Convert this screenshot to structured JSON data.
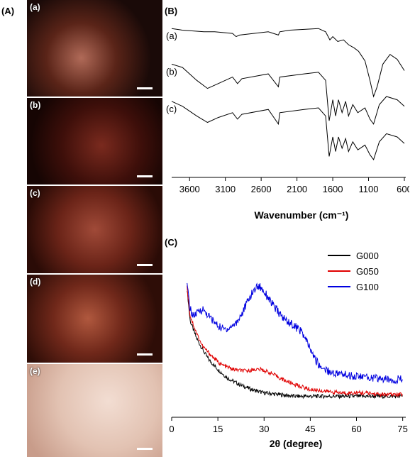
{
  "panels": {
    "A": "(A)",
    "B": "(B)",
    "C": "(C)"
  },
  "photos": [
    {
      "label": "(a)",
      "bg": "radial-gradient(circle at 40% 60%, #b06a58 0%, #5a2418 35%, #1a0a08 70%)"
    },
    {
      "label": "(b)",
      "bg": "radial-gradient(circle at 55% 55%, #7a2a1e 0%, #3e0f0a 45%, #160503 80%)"
    },
    {
      "label": "(c)",
      "bg": "radial-gradient(circle at 50% 50%, #a04a38 0%, #6b2418 45%, #2a0b06 85%)"
    },
    {
      "label": "(d)",
      "bg": "radial-gradient(circle at 45% 50%, #b0583e 0%, #70281a 40%, #2e0d07 80%)"
    },
    {
      "label": "(e)",
      "bg": "radial-gradient(circle at 60% 40%, #f2ddd2 0%, #e2c2b2 50%, #c89c8a 90%)"
    }
  ],
  "chart_data": [
    {
      "type": "line",
      "panel": "(B)",
      "xlabel": "Wavenumber (cm⁻¹)",
      "x_ticks": [
        3600,
        3100,
        2600,
        2100,
        1600,
        1100,
        600
      ],
      "xlim": [
        3850,
        580
      ],
      "reversed_x": true,
      "series": [
        {
          "name": "(a)",
          "points": [
            [
              3850,
              0.92
            ],
            [
              3700,
              0.91
            ],
            [
              3400,
              0.9
            ],
            [
              3250,
              0.9
            ],
            [
              3000,
              0.89
            ],
            [
              2950,
              0.87
            ],
            [
              2900,
              0.88
            ],
            [
              2500,
              0.9
            ],
            [
              2360,
              0.88
            ],
            [
              2340,
              0.9
            ],
            [
              2200,
              0.91
            ],
            [
              1800,
              0.92
            ],
            [
              1700,
              0.9
            ],
            [
              1640,
              0.85
            ],
            [
              1600,
              0.87
            ],
            [
              1530,
              0.84
            ],
            [
              1450,
              0.85
            ],
            [
              1380,
              0.82
            ],
            [
              1300,
              0.8
            ],
            [
              1240,
              0.78
            ],
            [
              1150,
              0.72
            ],
            [
              1080,
              0.6
            ],
            [
              1030,
              0.5
            ],
            [
              980,
              0.56
            ],
            [
              900,
              0.7
            ],
            [
              800,
              0.76
            ],
            [
              700,
              0.73
            ],
            [
              600,
              0.66
            ]
          ]
        },
        {
          "name": "(b)",
          "points": [
            [
              3850,
              0.7
            ],
            [
              3700,
              0.68
            ],
            [
              3500,
              0.6
            ],
            [
              3350,
              0.55
            ],
            [
              3200,
              0.58
            ],
            [
              3000,
              0.62
            ],
            [
              2930,
              0.58
            ],
            [
              2870,
              0.61
            ],
            [
              2500,
              0.64
            ],
            [
              2360,
              0.56
            ],
            [
              2340,
              0.62
            ],
            [
              2000,
              0.64
            ],
            [
              1800,
              0.65
            ],
            [
              1700,
              0.6
            ],
            [
              1650,
              0.35
            ],
            [
              1600,
              0.48
            ],
            [
              1560,
              0.38
            ],
            [
              1520,
              0.48
            ],
            [
              1470,
              0.4
            ],
            [
              1420,
              0.47
            ],
            [
              1380,
              0.38
            ],
            [
              1320,
              0.45
            ],
            [
              1250,
              0.4
            ],
            [
              1150,
              0.43
            ],
            [
              1080,
              0.36
            ],
            [
              1030,
              0.33
            ],
            [
              950,
              0.45
            ],
            [
              850,
              0.5
            ],
            [
              700,
              0.48
            ],
            [
              600,
              0.44
            ]
          ]
        },
        {
          "name": "(c)",
          "points": [
            [
              3850,
              0.47
            ],
            [
              3700,
              0.44
            ],
            [
              3500,
              0.38
            ],
            [
              3350,
              0.34
            ],
            [
              3200,
              0.37
            ],
            [
              3000,
              0.4
            ],
            [
              2930,
              0.36
            ],
            [
              2870,
              0.39
            ],
            [
              2500,
              0.42
            ],
            [
              2360,
              0.33
            ],
            [
              2340,
              0.4
            ],
            [
              2000,
              0.42
            ],
            [
              1800,
              0.43
            ],
            [
              1700,
              0.38
            ],
            [
              1650,
              0.13
            ],
            [
              1600,
              0.25
            ],
            [
              1560,
              0.16
            ],
            [
              1520,
              0.25
            ],
            [
              1470,
              0.18
            ],
            [
              1420,
              0.24
            ],
            [
              1380,
              0.16
            ],
            [
              1320,
              0.22
            ],
            [
              1250,
              0.17
            ],
            [
              1150,
              0.2
            ],
            [
              1080,
              0.14
            ],
            [
              1030,
              0.11
            ],
            [
              950,
              0.22
            ],
            [
              850,
              0.27
            ],
            [
              700,
              0.25
            ],
            [
              600,
              0.21
            ]
          ]
        }
      ]
    },
    {
      "type": "line",
      "panel": "(C)",
      "xlabel": "2θ (degree)",
      "x_ticks": [
        0,
        15,
        30,
        45,
        60,
        75
      ],
      "xlim": [
        0,
        76
      ],
      "ylim": [
        0,
        1
      ],
      "legend_position": "top-right",
      "series": [
        {
          "name": "G000",
          "color": "#000000",
          "points": [
            [
              5,
              0.74
            ],
            [
              6,
              0.55
            ],
            [
              8,
              0.45
            ],
            [
              10,
              0.38
            ],
            [
              12,
              0.32
            ],
            [
              15,
              0.26
            ],
            [
              18,
              0.21
            ],
            [
              22,
              0.17
            ],
            [
              26,
              0.14
            ],
            [
              30,
              0.12
            ],
            [
              35,
              0.11
            ],
            [
              40,
              0.1
            ],
            [
              50,
              0.1
            ],
            [
              60,
              0.1
            ],
            [
              75,
              0.1
            ]
          ]
        },
        {
          "name": "G050",
          "color": "#e00000",
          "points": [
            [
              5,
              0.75
            ],
            [
              6,
              0.58
            ],
            [
              8,
              0.48
            ],
            [
              10,
              0.4
            ],
            [
              13,
              0.34
            ],
            [
              16,
              0.29
            ],
            [
              20,
              0.26
            ],
            [
              24,
              0.25
            ],
            [
              27,
              0.26
            ],
            [
              29,
              0.26
            ],
            [
              32,
              0.24
            ],
            [
              36,
              0.2
            ],
            [
              40,
              0.17
            ],
            [
              45,
              0.14
            ],
            [
              50,
              0.13
            ],
            [
              55,
              0.12
            ],
            [
              60,
              0.12
            ],
            [
              63,
              0.12
            ],
            [
              68,
              0.11
            ],
            [
              75,
              0.11
            ]
          ]
        },
        {
          "name": "G100",
          "color": "#0000e0",
          "points": [
            [
              5,
              0.76
            ],
            [
              6,
              0.62
            ],
            [
              7,
              0.58
            ],
            [
              8,
              0.59
            ],
            [
              9,
              0.61
            ],
            [
              10,
              0.62
            ],
            [
              11,
              0.6
            ],
            [
              13,
              0.56
            ],
            [
              15,
              0.52
            ],
            [
              17,
              0.5
            ],
            [
              19,
              0.51
            ],
            [
              21,
              0.54
            ],
            [
              23,
              0.6
            ],
            [
              25,
              0.68
            ],
            [
              27,
              0.74
            ],
            [
              28,
              0.76
            ],
            [
              29,
              0.75
            ],
            [
              31,
              0.7
            ],
            [
              33,
              0.64
            ],
            [
              36,
              0.57
            ],
            [
              39,
              0.53
            ],
            [
              42,
              0.49
            ],
            [
              44,
              0.42
            ],
            [
              46,
              0.34
            ],
            [
              48,
              0.28
            ],
            [
              52,
              0.24
            ],
            [
              56,
              0.23
            ],
            [
              60,
              0.22
            ],
            [
              65,
              0.21
            ],
            [
              70,
              0.2
            ],
            [
              75,
              0.2
            ]
          ]
        }
      ]
    }
  ]
}
